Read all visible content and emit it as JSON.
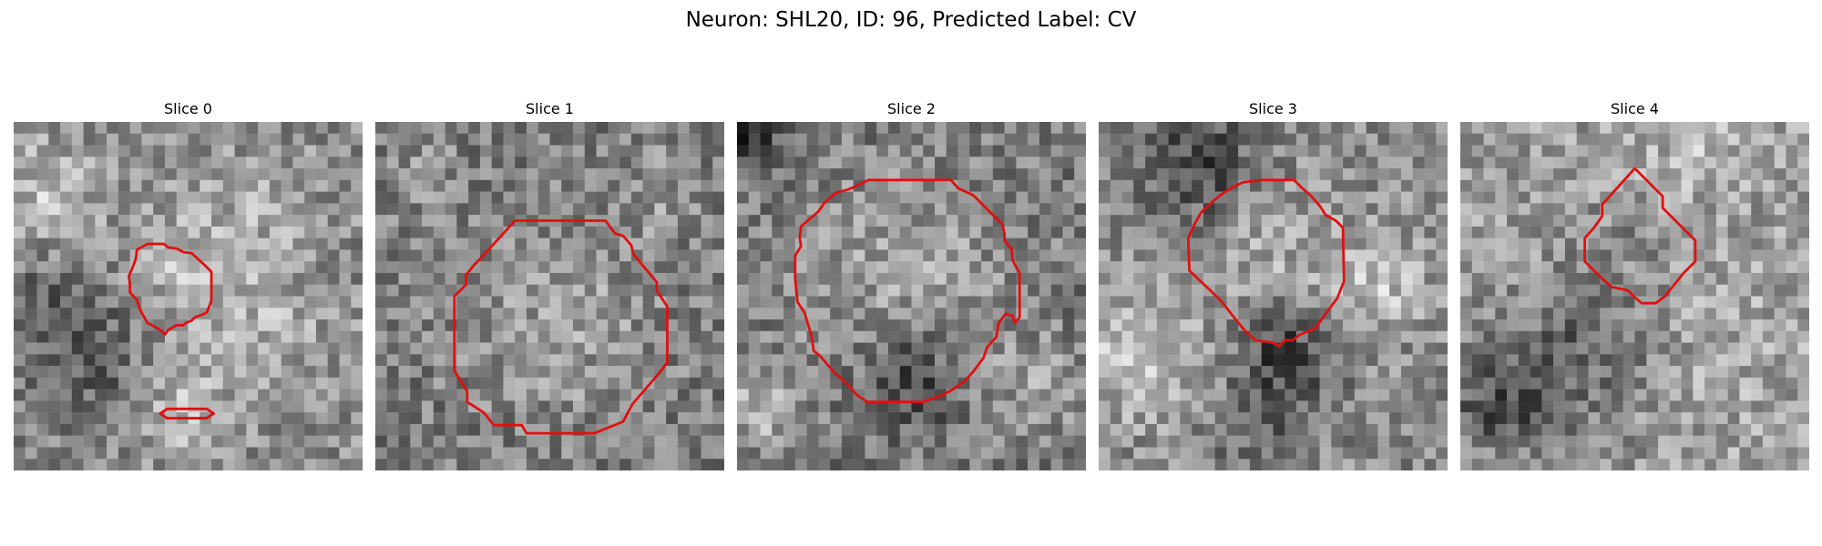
{
  "figure": {
    "title": "Neuron: SHL20, ID: 96, Predicted Label: CV",
    "neuron": "SHL20",
    "id": 96,
    "predicted_label": "CV",
    "contour_color": "#e01010",
    "colormap": "gray"
  },
  "slices": [
    {
      "title": "Slice 0"
    },
    {
      "title": "Slice 1"
    },
    {
      "title": "Slice 2"
    },
    {
      "title": "Slice 3"
    },
    {
      "title": "Slice 4"
    }
  ]
}
